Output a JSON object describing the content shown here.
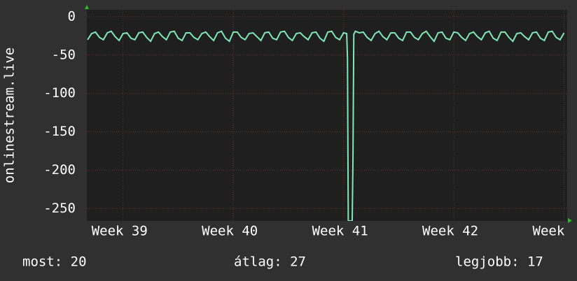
{
  "chart_data": {
    "type": "line",
    "y_label": "onlinestream.live",
    "annotations": [
      "most: 20",
      "átlag: 27",
      "legjobb: 17"
    ],
    "x": [
      270.75,
      271,
      271.25,
      271.5,
      271.75,
      272,
      272.25,
      272.5,
      272.75,
      273,
      273.25,
      273.5,
      273.75,
      274,
      274.25,
      274.5,
      274.75,
      275,
      275.25,
      275.5,
      275.75,
      276,
      276.25,
      276.5,
      276.75,
      277,
      277.25,
      277.5,
      277.75,
      278,
      278.25,
      278.5,
      278.75,
      279,
      279.25,
      279.5,
      279.75,
      280,
      280.25,
      280.5,
      280.75,
      281,
      281.25,
      281.5,
      281.75,
      282,
      282.25,
      282.5,
      282.75,
      283,
      283.25,
      283.5,
      283.75,
      284,
      284.25,
      284.5,
      284.75,
      285,
      285.25,
      285.5,
      285.75,
      286,
      286.25,
      286.5,
      286.75,
      287,
      287.2,
      287.25,
      287.3,
      287.55,
      287.6,
      287.65,
      287.75,
      288,
      288.25,
      288.5,
      288.75,
      289,
      289.25,
      289.5,
      289.75,
      290,
      290.25,
      290.5,
      290.75,
      291,
      291.25,
      291.5,
      291.75,
      292,
      292.25,
      292.5,
      292.75,
      293,
      293.25,
      293.5,
      293.75,
      294,
      294.25,
      294.5,
      294.75,
      295,
      295.25,
      295.5,
      295.75,
      296,
      296.25,
      296.5,
      296.75,
      297,
      297.25,
      297.5,
      297.75,
      298,
      298.25,
      298.5,
      298.75,
      299,
      299.25,
      299.5,
      299.75,
      300,
      300.25,
      300.5,
      300.75,
      301
    ],
    "series": [
      {
        "name": "onlinestream.live",
        "color": "#80e8b8",
        "values": [
          -30,
          -22,
          -20,
          -27,
          -30,
          -21,
          -19,
          -26,
          -31,
          -22,
          -21,
          -28,
          -30,
          -21,
          -20,
          -27,
          -32,
          -22,
          -20,
          -26,
          -30,
          -20,
          -19,
          -28,
          -31,
          -21,
          -21,
          -27,
          -30,
          -22,
          -20,
          -26,
          -31,
          -21,
          -19,
          -28,
          -32,
          -20,
          -20,
          -27,
          -30,
          -22,
          -21,
          -26,
          -31,
          -21,
          -20,
          -28,
          -30,
          -20,
          -19,
          -27,
          -31,
          -22,
          -21,
          -26,
          -30,
          -21,
          -20,
          -28,
          -32,
          -20,
          -19,
          -27,
          -30,
          -21,
          -22,
          -55,
          -266,
          -266,
          -180,
          -23,
          -19,
          -21,
          -20,
          -27,
          -31,
          -22,
          -19,
          -26,
          -30,
          -21,
          -21,
          -28,
          -31,
          -20,
          -20,
          -27,
          -30,
          -22,
          -19,
          -26,
          -32,
          -21,
          -20,
          -28,
          -30,
          -20,
          -21,
          -27,
          -31,
          -22,
          -20,
          -26,
          -30,
          -21,
          -19,
          -28,
          -31,
          -20,
          -20,
          -27,
          -32,
          -22,
          -21,
          -26,
          -30,
          -21,
          -20,
          -28,
          -31,
          -20,
          -19,
          -27,
          -30,
          -21
        ]
      }
    ],
    "xlim": [
      270.7,
      301.2
    ],
    "xticks": [
      {
        "value": 273,
        "label": "Week 39"
      },
      {
        "value": 280,
        "label": "Week 40"
      },
      {
        "value": 287,
        "label": "Week 41"
      },
      {
        "value": 294,
        "label": "Week 42"
      },
      {
        "value": 301,
        "label": "Week"
      }
    ],
    "ylim": [
      -266,
      9
    ],
    "yticks": [
      0,
      -50,
      -100,
      -150,
      -200,
      -250
    ],
    "grid": true
  }
}
